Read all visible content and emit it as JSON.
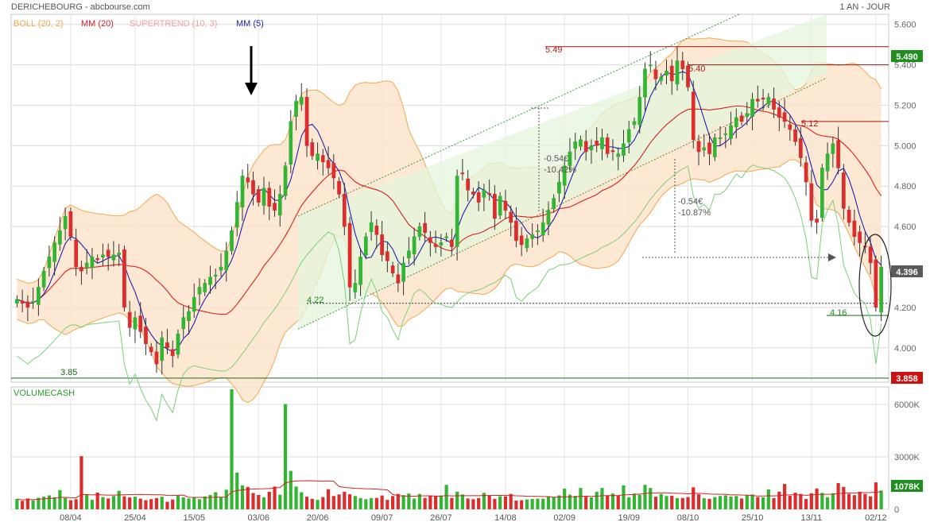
{
  "header": {
    "title": "DERICHEBOURG - abcbourse.com",
    "period": "1 AN - JOUR"
  },
  "legend": {
    "items": [
      {
        "label": "BOLL (20, 2)",
        "color": "#f0a850"
      },
      {
        "label": "MM (20)",
        "color": "#d62020"
      },
      {
        "label": "SUPERTREND (10, 3)",
        "color": "#f4a0a0"
      },
      {
        "label": "MM (5)",
        "color": "#2020b0"
      }
    ]
  },
  "volume_panel": {
    "title": "VOLUMECASH"
  },
  "annotations": {
    "level_549": "5.49",
    "level_540": "5.40",
    "level_512": "5.12",
    "level_422": "4.22",
    "level_416": "4.16",
    "level_385": "3.85",
    "drop1_abs": "-0.54€",
    "drop1_pct": "-10.42%",
    "drop2_abs": "-0.54€",
    "drop2_pct": "-10.87%"
  },
  "badges": {
    "high": "5.490",
    "last": "4.396",
    "low": "3.858",
    "volume": "1078K"
  },
  "colors": {
    "up": "#33b533",
    "down": "#dd2c2c",
    "boll_fill": "#fde4cc",
    "channel_fill": "#e4f6dc",
    "grid": "#dcdcdc",
    "badge_green": "#1e8e1e",
    "badge_gray": "#5a5a5a",
    "badge_red": "#cc1111"
  },
  "chart_data": {
    "type": "candlestick",
    "price_axis": {
      "ticks": [
        "5.600",
        "5.400",
        "5.200",
        "5.000",
        "4.800",
        "4.600",
        "4.200",
        "4.000"
      ],
      "range": [
        3.83,
        5.65
      ]
    },
    "volume_axis": {
      "ticks": [
        "6000K",
        "3000K",
        "0"
      ],
      "range": [
        0,
        7000
      ]
    },
    "x_ticks": [
      "08/04",
      "25/04",
      "15/05",
      "03/06",
      "20/06",
      "09/07",
      "26/07",
      "14/08",
      "02/09",
      "19/09",
      "08/10",
      "25/10",
      "13/11",
      "02/12"
    ],
    "closes": [
      4.24,
      4.22,
      4.2,
      4.23,
      4.3,
      4.38,
      4.45,
      4.52,
      4.58,
      4.65,
      4.55,
      4.4,
      4.38,
      4.42,
      4.45,
      4.44,
      4.46,
      4.45,
      4.46,
      4.47,
      4.2,
      4.1,
      4.15,
      4.08,
      4.02,
      3.98,
      3.92,
      4.05,
      4.0,
      3.96,
      4.07,
      4.15,
      4.18,
      4.25,
      4.3,
      4.32,
      4.35,
      4.36,
      4.4,
      4.48,
      4.58,
      4.72,
      4.85,
      4.82,
      4.76,
      4.72,
      4.79,
      4.7,
      4.68,
      4.76,
      4.9,
      5.12,
      5.22,
      5.24,
      5.0,
      4.95,
      4.96,
      4.92,
      4.89,
      4.84,
      4.76,
      4.6,
      4.3,
      4.32,
      4.45,
      4.55,
      4.62,
      4.56,
      4.46,
      4.43,
      4.37,
      4.32,
      4.42,
      4.48,
      4.55,
      4.6,
      4.57,
      4.52,
      4.5,
      4.52,
      4.55,
      4.5,
      4.85,
      4.86,
      4.78,
      4.76,
      4.72,
      4.78,
      4.76,
      4.64,
      4.75,
      4.68,
      4.62,
      4.53,
      4.51,
      4.54,
      4.56,
      4.58,
      4.62,
      4.68,
      4.74,
      4.82,
      4.9,
      4.97,
      5.02,
      5.03,
      4.97,
      5.0,
      5.0,
      5.04,
      4.96,
      4.97,
      4.96,
      5.01,
      5.08,
      5.12,
      5.24,
      5.38,
      5.4,
      5.33,
      5.34,
      5.37,
      5.32,
      5.42,
      5.38,
      5.29,
      5.03,
      4.97,
      4.99,
      4.96,
      5.04,
      5.04,
      5.06,
      5.1,
      5.14,
      5.12,
      5.16,
      5.23,
      5.22,
      5.23,
      5.24,
      5.18,
      5.14,
      5.12,
      5.08,
      5.02,
      4.94,
      4.82,
      4.63,
      4.62,
      4.89,
      4.96,
      5.01,
      4.89,
      4.69,
      4.62,
      4.55,
      4.52,
      4.5,
      4.42,
      4.2,
      4.4
    ],
    "volumes": [
      590,
      480,
      620,
      510,
      660,
      720,
      800,
      690,
      1100,
      650,
      520,
      580,
      3040,
      870,
      540,
      960,
      700,
      620,
      760,
      1060,
      740,
      680,
      720,
      610,
      520,
      580,
      640,
      720,
      430,
      560,
      780,
      690,
      620,
      700,
      580,
      740,
      820,
      980,
      700,
      1120,
      6870,
      2100,
      1370,
      1280,
      930,
      820,
      680,
      1000,
      1300,
      830,
      6020,
      2200,
      1300,
      980,
      720,
      600,
      540,
      700,
      1150,
      760,
      850,
      1000,
      860,
      760,
      640,
      580,
      640,
      650,
      790,
      540,
      760,
      880,
      810,
      900,
      620,
      880,
      650,
      780,
      760,
      790,
      1400,
      650,
      1010,
      850,
      620,
      580,
      640,
      940,
      780,
      600,
      750,
      730,
      880,
      500,
      520,
      560,
      590,
      610,
      610,
      740,
      680,
      800,
      1180,
      840,
      770,
      1220,
      720,
      680,
      1000,
      1220,
      790,
      900,
      780,
      1370,
      690,
      900,
      830,
      1400,
      1220,
      720,
      880,
      760,
      780,
      640,
      650,
      700,
      1260,
      860,
      640,
      600,
      700,
      760,
      800,
      730,
      760,
      620,
      800,
      850,
      700,
      690,
      1140,
      640,
      1010,
      1450,
      770,
      950,
      880,
      590,
      920,
      1190,
      940,
      690,
      920,
      1500,
      1280,
      880,
      810,
      1000,
      880,
      740,
      1540,
      1078
    ]
  }
}
